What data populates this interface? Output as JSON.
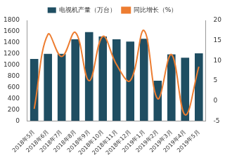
{
  "chart_data": {
    "type": "bar",
    "categories": [
      "2018年5月",
      "2018年6月",
      "2018年7月",
      "2018年8月",
      "2018年9月",
      "2018年10月",
      "2018年11月",
      "2018年12月",
      "2019年1月",
      "2019年2月",
      "2019年3月",
      "2019年4月",
      "2019年5月"
    ],
    "series": [
      {
        "name": "电视机产量（万台）",
        "type": "bar",
        "color": "#1f4e62",
        "values": [
          1110,
          1200,
          1200,
          1460,
          1590,
          1510,
          1460,
          1420,
          1470,
          720,
          1190,
          1130,
          1210
        ]
      },
      {
        "name": "同比增长（%）",
        "type": "line",
        "color": "#ed7d31",
        "axis": "y2",
        "values": [
          -2,
          16.5,
          11,
          17,
          5,
          16,
          9,
          5,
          17.5,
          0.5,
          11.5,
          -3.5,
          8.5
        ]
      }
    ],
    "ylim": [
      0,
      1800
    ],
    "yticks": [
      0,
      200,
      400,
      600,
      800,
      1000,
      1200,
      1400,
      1600,
      1800
    ],
    "y2lim": [
      -5,
      20
    ],
    "y2ticks": [
      -5,
      0,
      5,
      10,
      15,
      20
    ],
    "legend": "top",
    "grid": false
  }
}
